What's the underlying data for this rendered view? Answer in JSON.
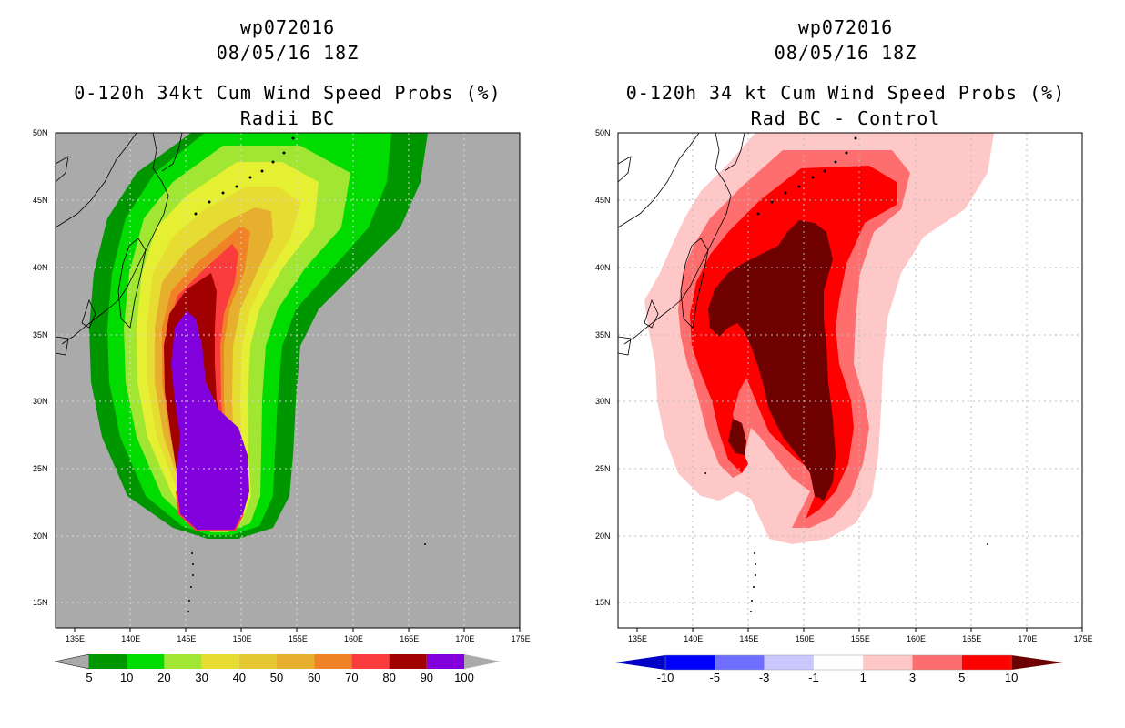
{
  "left_panel": {
    "storm_id": "wp072016",
    "datetime": "08/05/16 18Z",
    "title": "0-120h 34kt Cum Wind Speed Probs (%)",
    "subtitle": "Radii BC",
    "background_color": "#aaaaaa",
    "colorbar": {
      "levels": [
        "5",
        "10",
        "20",
        "30",
        "40",
        "50",
        "60",
        "70",
        "80",
        "90",
        "100"
      ],
      "colors": [
        "#009600",
        "#00dc00",
        "#a0e632",
        "#e6dc32",
        "#e6c832",
        "#e6af2d",
        "#f08228",
        "#fa3c3c",
        "#a00000",
        "#8200dc"
      ]
    }
  },
  "right_panel": {
    "storm_id": "wp072016",
    "datetime": "08/05/16 18Z",
    "title": "0-120h 34 kt Cum Wind Speed Probs (%)",
    "subtitle": "Rad BC - Control",
    "background_color": "#ffffff",
    "colorbar": {
      "levels": [
        "-10",
        "-5",
        "-3",
        "-1",
        "1",
        "3",
        "5",
        "10"
      ],
      "colors": [
        "#0000c8",
        "#0000ff",
        "#6e6eff",
        "#c8c8ff",
        "#ffffff",
        "#ffc8c8",
        "#ff6e6e",
        "#ff0000",
        "#6e0000"
      ]
    }
  },
  "map": {
    "lon_labels": [
      "135E",
      "140E",
      "145E",
      "150E",
      "155E",
      "160E",
      "165E",
      "170E",
      "175E"
    ],
    "lat_labels": [
      "15N",
      "20N",
      "25N",
      "30N",
      "35N",
      "40N",
      "45N",
      "50N"
    ]
  }
}
